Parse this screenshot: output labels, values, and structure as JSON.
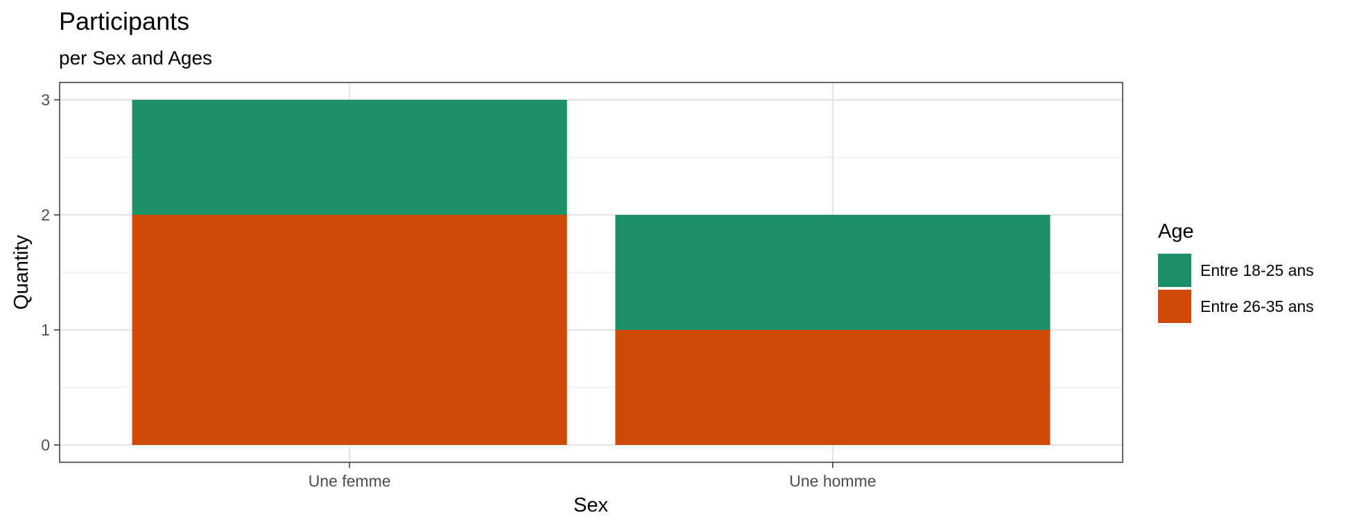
{
  "chart_data": {
    "type": "bar",
    "stacked": true,
    "title": "Participants",
    "subtitle": "per Sex and Ages",
    "xlabel": "Sex",
    "ylabel": "Quantity",
    "categories": [
      "Une femme",
      "Une homme"
    ],
    "ylim": [
      0,
      3
    ],
    "yticks": [
      "0",
      "1",
      "2",
      "3"
    ],
    "grid": true,
    "legend": {
      "title": "Age",
      "position": "right"
    },
    "series": [
      {
        "name": "Entre 26-35 ans",
        "values": [
          2,
          1
        ],
        "color": "#D04A0A"
      },
      {
        "name": "Entre 18-25 ans",
        "values": [
          1,
          1
        ],
        "color": "#1E9068"
      }
    ],
    "legend_order": [
      "Entre 18-25 ans",
      "Entre 26-35 ans"
    ]
  }
}
